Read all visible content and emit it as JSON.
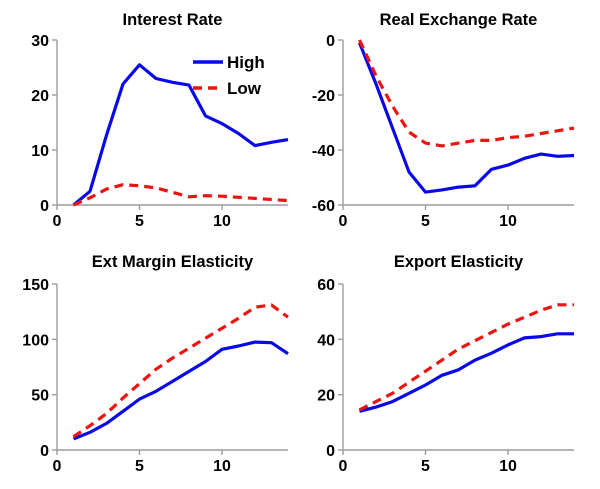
{
  "colors": {
    "high": "#0909E8",
    "low": "#EC1410",
    "axis": "#9C9C9C",
    "text": "#000000",
    "background": "#FFFFFF"
  },
  "legend": {
    "location": "northeast-inside-first-chart",
    "box": false,
    "entries": [
      {
        "label": "High",
        "color_key": "high",
        "line_style": "solid"
      },
      {
        "label": "Low",
        "color_key": "low",
        "line_style": "dashed"
      }
    ]
  },
  "chart_data": [
    {
      "type": "line",
      "title": "Interest Rate",
      "xlabel": "",
      "ylabel": "",
      "x": [
        1,
        2,
        3,
        4,
        5,
        6,
        7,
        8,
        9,
        10,
        11,
        12,
        13,
        14
      ],
      "xlim": [
        0,
        14
      ],
      "xticks": [
        0,
        5,
        10
      ],
      "ylim": [
        0,
        30
      ],
      "yticks": [
        0,
        10,
        20,
        30
      ],
      "grid": false,
      "show_legend": true,
      "series": [
        {
          "name": "High",
          "color_key": "high",
          "line_style": "solid",
          "values": [
            0,
            2.5,
            12.7,
            22,
            25.5,
            23,
            22.3,
            21.8,
            16.2,
            14.8,
            13,
            10.8,
            11.4,
            11.9
          ]
        },
        {
          "name": "Low",
          "color_key": "low",
          "line_style": "dashed",
          "values": [
            0,
            1.3,
            2.9,
            3.7,
            3.5,
            3.1,
            2.3,
            1.5,
            1.7,
            1.6,
            1.4,
            1.2,
            1.0,
            0.8
          ]
        }
      ]
    },
    {
      "type": "line",
      "title": "Real Exchange Rate",
      "xlabel": "",
      "ylabel": "",
      "x": [
        1,
        2,
        3,
        4,
        5,
        6,
        7,
        8,
        9,
        10,
        11,
        12,
        13,
        14
      ],
      "xlim": [
        0,
        14
      ],
      "xticks": [
        0,
        5,
        10
      ],
      "ylim": [
        -60,
        0
      ],
      "yticks": [
        -60,
        -40,
        -20,
        0
      ],
      "grid": false,
      "show_legend": false,
      "series": [
        {
          "name": "High",
          "color_key": "high",
          "line_style": "solid",
          "values": [
            -1,
            -16,
            -32,
            -48,
            -55.3,
            -54.5,
            -53.5,
            -53,
            -47,
            -45.5,
            -43,
            -41.5,
            -42.3,
            -42
          ]
        },
        {
          "name": "Low",
          "color_key": "low",
          "line_style": "dashed",
          "values": [
            0,
            -13,
            -24,
            -33.5,
            -37.5,
            -38.5,
            -37.5,
            -36.5,
            -36.5,
            -35.5,
            -35,
            -34,
            -33,
            -32
          ]
        }
      ]
    },
    {
      "type": "line",
      "title": "Ext Margin Elasticity",
      "xlabel": "",
      "ylabel": "",
      "x": [
        1,
        2,
        3,
        4,
        5,
        6,
        7,
        8,
        9,
        10,
        11,
        12,
        13,
        14
      ],
      "xlim": [
        0,
        14
      ],
      "xticks": [
        0,
        5,
        10
      ],
      "ylim": [
        0,
        150
      ],
      "yticks": [
        0,
        50,
        100,
        150
      ],
      "grid": false,
      "show_legend": false,
      "series": [
        {
          "name": "High",
          "color_key": "high",
          "line_style": "solid",
          "values": [
            10,
            16,
            24,
            35,
            46,
            53,
            62,
            71,
            80,
            91,
            94,
            97.5,
            97,
            87
          ]
        },
        {
          "name": "Low",
          "color_key": "low",
          "line_style": "dashed",
          "values": [
            12,
            22,
            33,
            47,
            60,
            73,
            83,
            92,
            101,
            110,
            119,
            129,
            131,
            120
          ]
        }
      ]
    },
    {
      "type": "line",
      "title": "Export Elasticity",
      "xlabel": "",
      "ylabel": "",
      "x": [
        1,
        2,
        3,
        4,
        5,
        6,
        7,
        8,
        9,
        10,
        11,
        12,
        13,
        14
      ],
      "xlim": [
        0,
        14
      ],
      "xticks": [
        0,
        5,
        10
      ],
      "ylim": [
        0,
        60
      ],
      "yticks": [
        0,
        20,
        40,
        60
      ],
      "grid": false,
      "show_legend": false,
      "series": [
        {
          "name": "High",
          "color_key": "high",
          "line_style": "solid",
          "values": [
            14,
            15.5,
            17.5,
            20.5,
            23.5,
            27,
            29,
            32.5,
            35,
            38,
            40.5,
            41,
            42,
            42
          ]
        },
        {
          "name": "Low",
          "color_key": "low",
          "line_style": "dashed",
          "values": [
            14.5,
            17.5,
            20.5,
            24.5,
            28.5,
            32.5,
            36.5,
            39.5,
            42.5,
            45.5,
            48,
            50.5,
            52.5,
            52.5
          ]
        }
      ]
    }
  ]
}
